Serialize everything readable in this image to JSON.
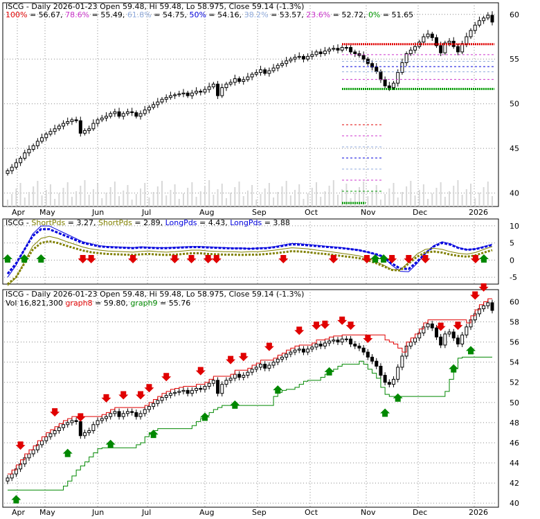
{
  "colors": {
    "red": "#e00000",
    "green": "#008800",
    "blue": "#0000dd",
    "olive": "#808000",
    "pink": "#cc33cc",
    "lightblue": "#8faadc",
    "darkgreen": "#009900",
    "grid": "#888888"
  },
  "chart_data": [
    {
      "type": "candlestick",
      "title": "ISCG - Daily 2026-01-23 Open 59.48, Hi 59.48, Lo 58.975, Close 59.14 (-1.3%)",
      "fib_legend": [
        {
          "label": "100%",
          "value": "= 56.67,",
          "color": "#e00000"
        },
        {
          "label": "78.6%",
          "value": "= 55.49,",
          "color": "#cc33cc"
        },
        {
          "label": "61.8%",
          "value": "= 54.75,",
          "color": "#8faadc"
        },
        {
          "label": "50%",
          "value": "= 54.16,",
          "color": "#0000dd"
        },
        {
          "label": "38.2%",
          "value": "= 53.57,",
          "color": "#8faadc"
        },
        {
          "label": "23.6%",
          "value": "= 52.72,",
          "color": "#cc33cc"
        },
        {
          "label": "0%",
          "value": "= 51.65",
          "color": "#009900"
        }
      ],
      "fib_levels": [
        56.67,
        55.49,
        54.75,
        54.16,
        53.57,
        52.72,
        51.65
      ],
      "x_ticks": [
        "Apr",
        "May",
        "Jun",
        "Jul",
        "Aug",
        "Sep",
        "Oct",
        "Nov",
        "Dec",
        "2026"
      ],
      "y_ticks": [
        40,
        45,
        50,
        55,
        60
      ],
      "ylim": [
        38.5,
        61.3
      ],
      "close": [
        42.5,
        42.9,
        43.4,
        43.9,
        44.5,
        44.9,
        45.3,
        45.8,
        46.2,
        46.6,
        46.9,
        47.2,
        47.5,
        47.8,
        48.0,
        48.2,
        48.1,
        46.7,
        47.0,
        47.2,
        47.8,
        48.2,
        48.4,
        48.6,
        48.9,
        49.1,
        48.6,
        48.9,
        49.1,
        49.0,
        48.6,
        48.9,
        49.3,
        49.6,
        49.9,
        50.2,
        50.5,
        50.7,
        50.9,
        51.0,
        51.1,
        51.2,
        50.9,
        51.2,
        51.4,
        51.3,
        51.6,
        51.9,
        52.2,
        50.9,
        51.8,
        52.2,
        52.4,
        52.8,
        52.5,
        52.7,
        53.0,
        53.3,
        53.5,
        53.8,
        53.4,
        53.7,
        54.0,
        54.3,
        54.5,
        54.8,
        55.0,
        55.2,
        55.3,
        55.0,
        55.3,
        55.5,
        55.8,
        55.6,
        55.9,
        56.1,
        56.2,
        56.0,
        56.3,
        56.3,
        55.8,
        55.6,
        55.4,
        55.0,
        54.5,
        54.1,
        53.6,
        52.7,
        52.0,
        51.8,
        52.3,
        53.5,
        54.6,
        55.6,
        56.0,
        56.4,
        56.9,
        57.5,
        57.8,
        57.4,
        56.5,
        55.7,
        56.8,
        57.0,
        56.4,
        55.8,
        56.7,
        57.5,
        58.2,
        58.8,
        59.3,
        59.6,
        59.9,
        59.14
      ],
      "x_axis_stretch": "apr-2025-to-jan-2026"
    },
    {
      "type": "line",
      "title": "ISCG - ShortPds = 3.27, ShortPds = 2.89, LongPds = 4.43, LongPds = 3.88",
      "legend": [
        {
          "label": "ISCG - ",
          "value": "",
          "color": "#000000"
        },
        {
          "label": "ShortPds",
          "value": "= 3.27,",
          "color": "#808000"
        },
        {
          "label": "ShortPds",
          "value": "= 2.89,",
          "color": "#808000"
        },
        {
          "label": "LongPds",
          "value": "= 4.43,",
          "color": "#0000dd"
        },
        {
          "label": "LongPds",
          "value": "= 3.88",
          "color": "#0000dd"
        }
      ],
      "y_ticks": [
        10,
        5,
        0,
        -5
      ],
      "ylim": [
        -7,
        12
      ],
      "series": [
        {
          "values": [
            -4,
            -1,
            3,
            7,
            9,
            9,
            8,
            7,
            6,
            5,
            4.5,
            4,
            3.8,
            3.7,
            3.6,
            3.5,
            3.7,
            3.6,
            3.5,
            3.5,
            3.6,
            3.7,
            3.8,
            3.8,
            3.7,
            3.6,
            3.5,
            3.4,
            3.4,
            3.3,
            3.4,
            3.5,
            3.8,
            4.2,
            4.6,
            4.5,
            4.3,
            4.1,
            3.9,
            3.7,
            3.5,
            3.2,
            2.9,
            2.4,
            1.8,
            1.0,
            -1.0,
            -2.5,
            -2.6,
            -0.5,
            2.0,
            4.0,
            5.0,
            4.5,
            3.5,
            3.0,
            3.2,
            3.8,
            4.4
          ]
        },
        {
          "values": [
            -7,
            -5,
            -1,
            3,
            5,
            5.5,
            5,
            4.2,
            3.5,
            2.8,
            2.3,
            2.0,
            1.8,
            1.7,
            1.6,
            1.5,
            1.7,
            1.8,
            1.6,
            1.5,
            1.6,
            1.8,
            2.0,
            2.0,
            1.8,
            1.7,
            1.6,
            1.6,
            1.5,
            1.6,
            1.6,
            1.8,
            2.0,
            2.3,
            2.6,
            2.5,
            2.3,
            2.0,
            1.8,
            1.5,
            1.2,
            0.9,
            0.6,
            0.0,
            -0.8,
            -1.8,
            -2.9,
            -3.0,
            -1.0,
            1.0,
            2.2,
            2.5,
            2.2,
            1.6,
            1.2,
            1.0,
            1.4,
            2.2,
            2.9
          ]
        }
      ],
      "down_arrow_index": [
        9,
        10,
        15,
        20,
        22,
        24,
        25,
        33,
        39,
        43,
        46,
        48,
        50,
        56
      ],
      "up_arrow_index": [
        0,
        2,
        4,
        44,
        45,
        57
      ]
    },
    {
      "type": "candlestick",
      "title": "ISCG - Daily 2026-01-23 Open 59.48, Hi 59.48, Lo 58.975, Close 59.14 (-1.3%)",
      "legend": [
        {
          "label": "Vol 16,821,300",
          "value": "",
          "color": "#000000"
        },
        {
          "label": "graph8",
          "value": "= 59.80,",
          "color": "#e00000"
        },
        {
          "label": "graph9",
          "value": "= 55.76",
          "color": "#008800"
        }
      ],
      "y_ticks": [
        40,
        42,
        44,
        46,
        48,
        50,
        52,
        54,
        56,
        58,
        60
      ],
      "ylim": [
        39.6,
        61.2
      ],
      "graph8_last": 59.8,
      "graph9_last": 55.76
    }
  ]
}
